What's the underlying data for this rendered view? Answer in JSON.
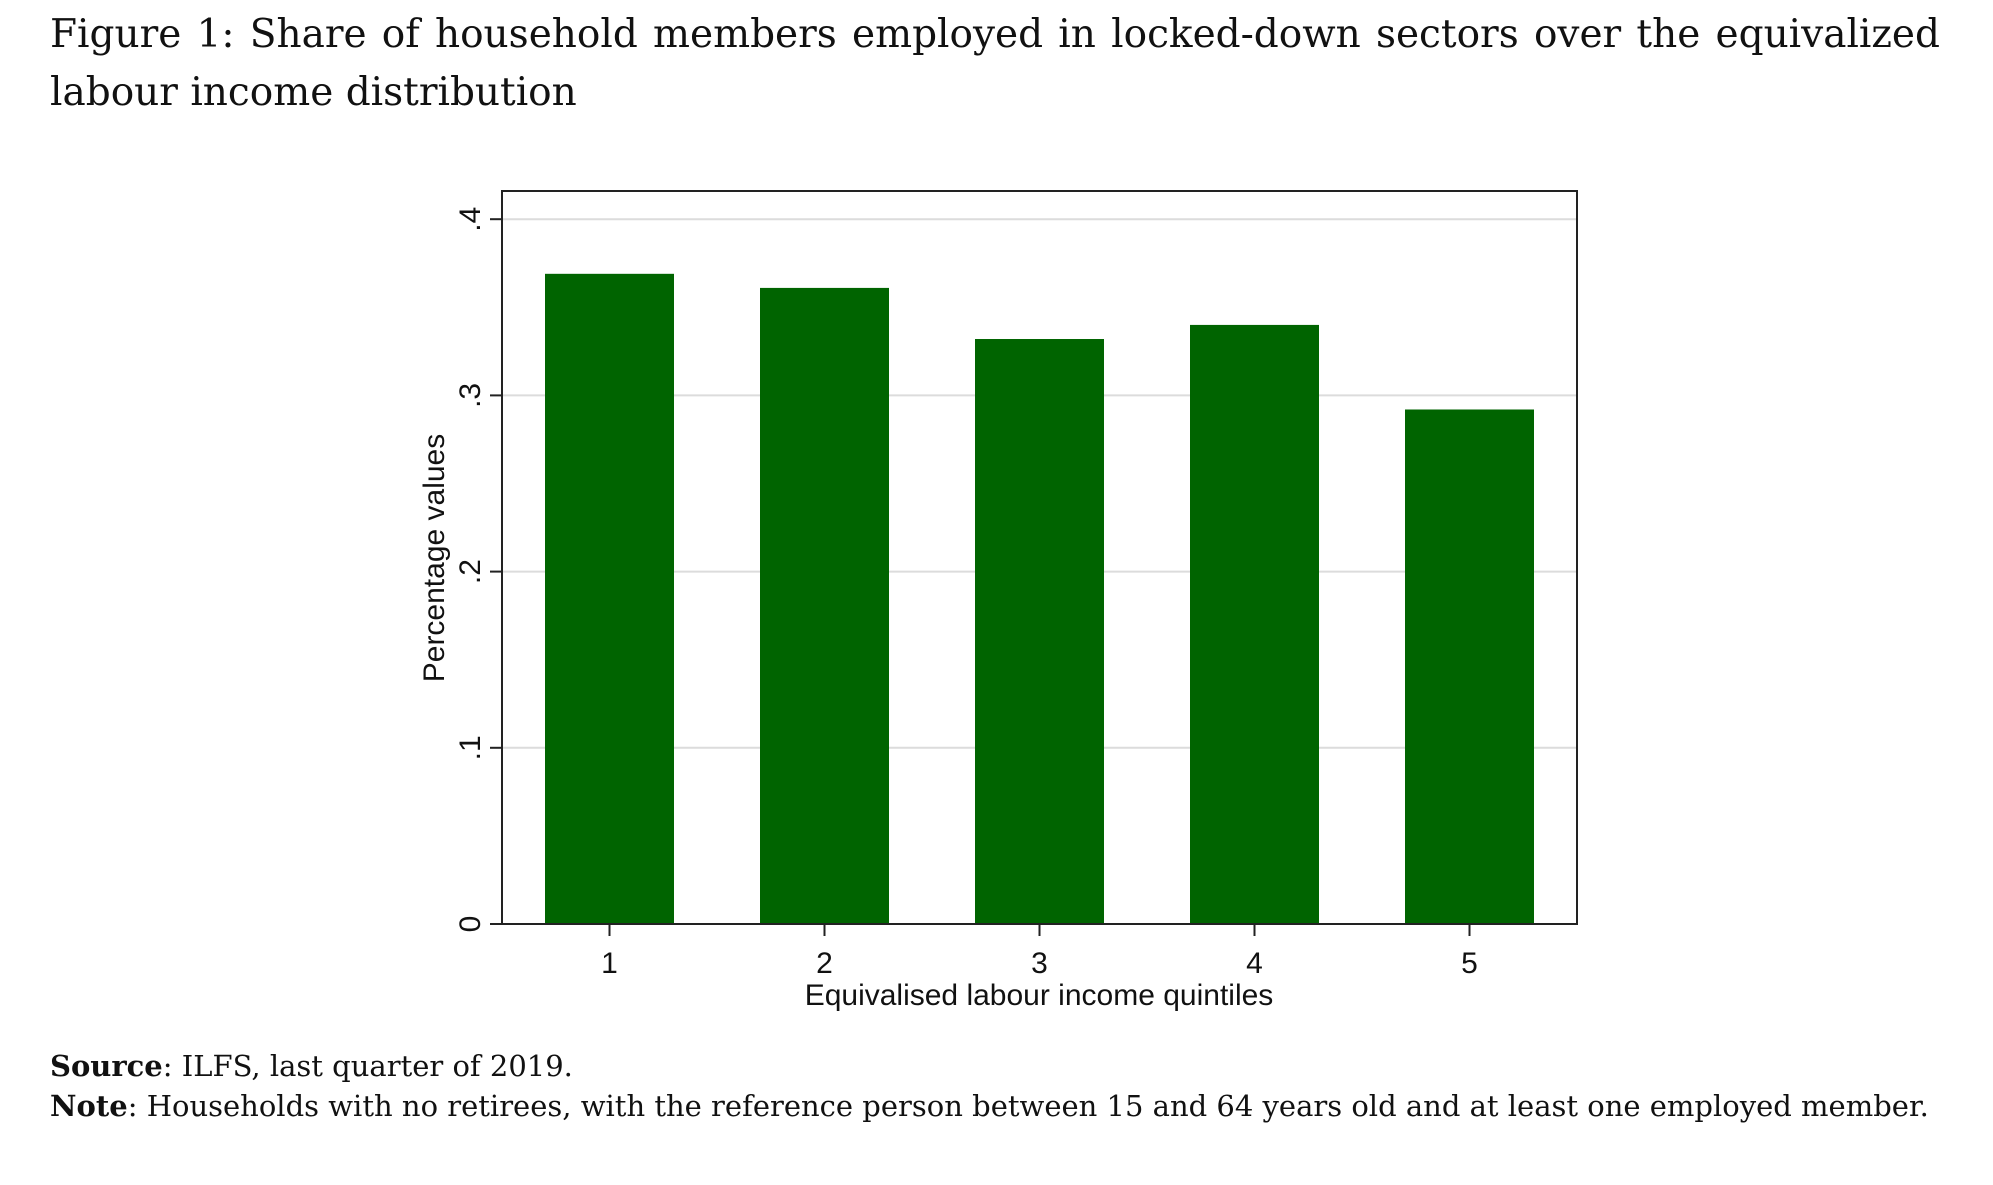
{
  "caption": {
    "prefix": "Figure 1:",
    "text": "Share of household members employed in locked-down sectors over the equivalized labour income distribution"
  },
  "chart_data": {
    "type": "bar",
    "categories": [
      "1",
      "2",
      "3",
      "4",
      "5"
    ],
    "values": [
      0.369,
      0.361,
      0.332,
      0.34,
      0.292
    ],
    "xlabel": "Equivalised labour income quintiles",
    "ylabel": "Percentage values",
    "ylim": [
      0,
      0.416
    ],
    "yticks": [
      0,
      0.1,
      0.2,
      0.3,
      0.4
    ],
    "ytick_labels": [
      "0",
      ".1",
      ".2",
      ".3",
      ".4"
    ],
    "grid": true,
    "legend": "none",
    "bar_color": "#006400",
    "grid_color": "#dcdcdc"
  },
  "notes": {
    "source_label": "Source",
    "source_text": ": ILFS, last quarter of 2019.",
    "note_label": "Note",
    "note_text": ": Households with no retirees, with the reference person between 15 and 64 years old and at least one employed member."
  }
}
